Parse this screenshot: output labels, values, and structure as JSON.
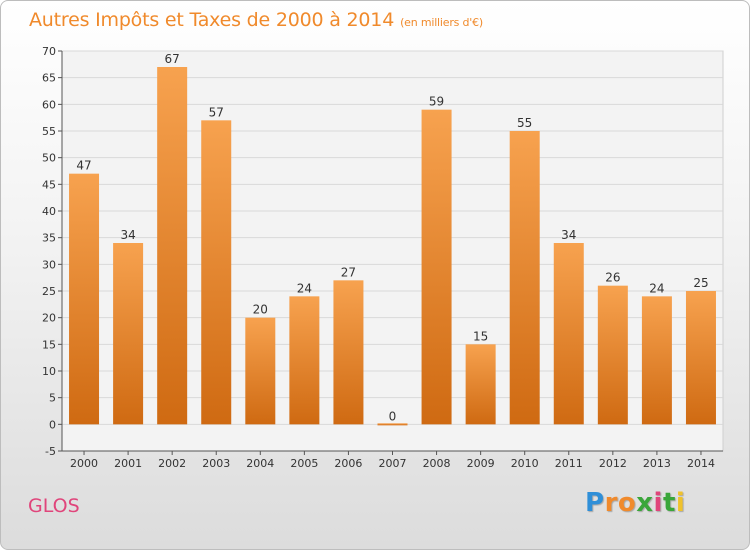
{
  "chart_data": {
    "type": "bar",
    "title": "Autres Impôts et Taxes de 2000 à 2014",
    "subtitle": "(en milliers d'€)",
    "categories": [
      "2000",
      "2001",
      "2002",
      "2003",
      "2004",
      "2005",
      "2006",
      "2007",
      "2008",
      "2009",
      "2010",
      "2011",
      "2012",
      "2013",
      "2014"
    ],
    "values": [
      47,
      34,
      67,
      57,
      20,
      24,
      27,
      0,
      59,
      15,
      55,
      34,
      26,
      24,
      25
    ],
    "ylim": [
      -5,
      70
    ],
    "yticks": [
      -5,
      0,
      5,
      10,
      15,
      20,
      25,
      30,
      35,
      40,
      45,
      50,
      55,
      60,
      65,
      70
    ],
    "grid": true,
    "bar_color_top": "#f7a24f",
    "bar_color_bottom": "#cf6a12",
    "xlabel": "",
    "ylabel": ""
  },
  "place_name": "GLOS",
  "logo": {
    "letters": [
      "P",
      "r",
      "o",
      "x",
      "i",
      "t",
      "i"
    ],
    "colors": [
      "#2f8fd8",
      "#f08a2c",
      "#f08a2c",
      "#3aa63a",
      "#e0457b",
      "#3aa63a",
      "#f0c22c"
    ]
  }
}
